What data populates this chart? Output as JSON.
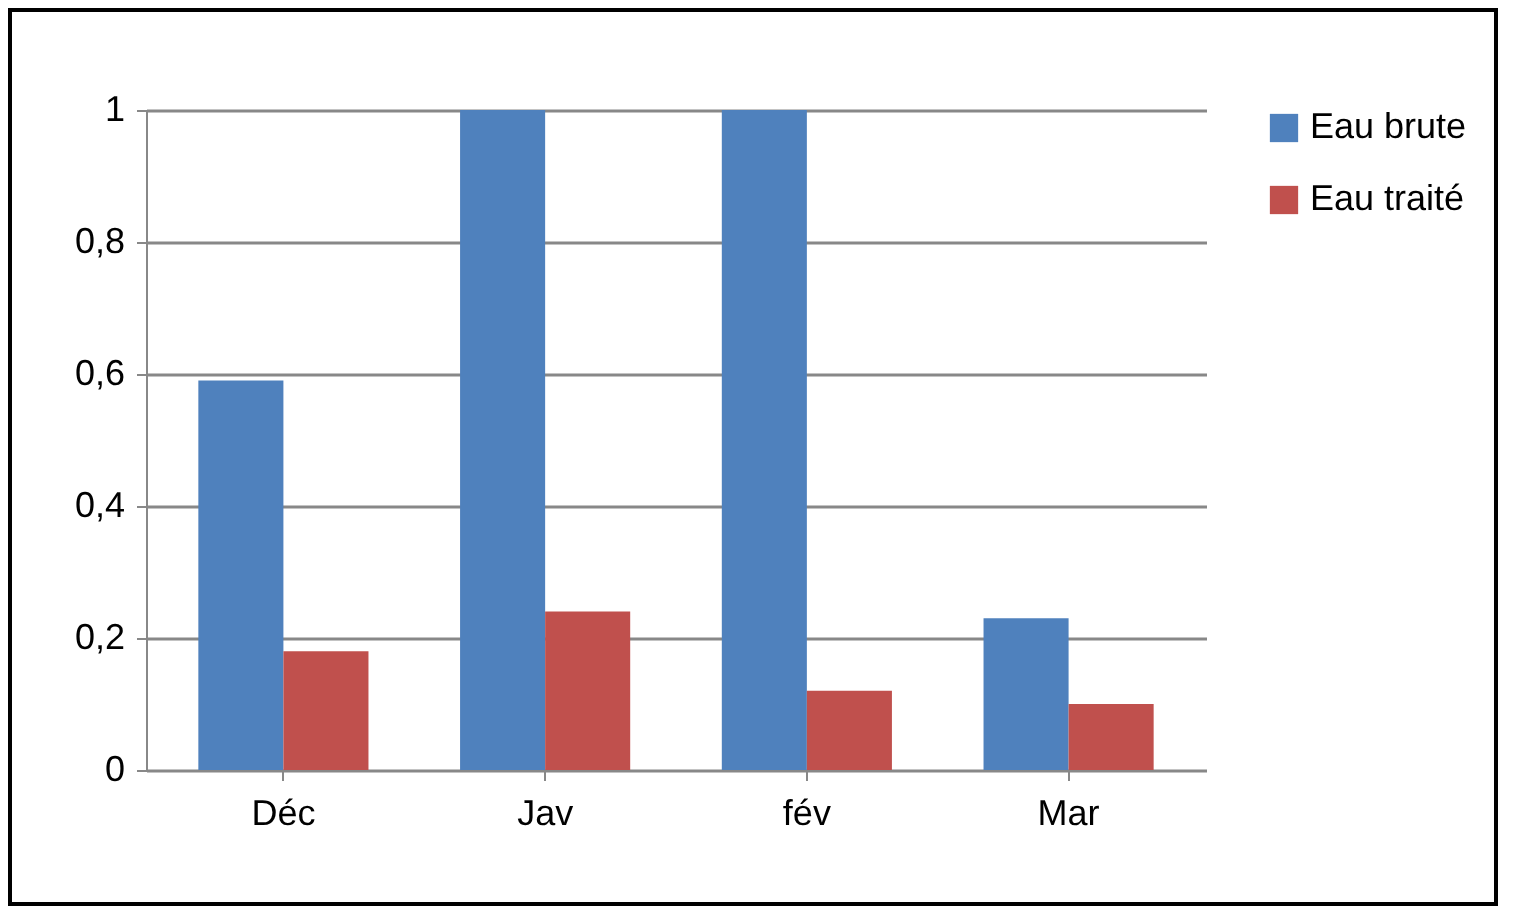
{
  "chart_data": {
    "type": "bar",
    "categories": [
      "Déc",
      "Jav",
      "fév",
      "Mar"
    ],
    "series": [
      {
        "name": "Eau brute",
        "color": "#4f81bd",
        "values": [
          0.59,
          1,
          1,
          0.23
        ]
      },
      {
        "name": "Eau traité",
        "color": "#c0504d",
        "values": [
          0.18,
          0.24,
          0.12,
          0.1
        ]
      }
    ],
    "ylim": [
      0,
      1
    ],
    "yticks": [
      0,
      {
        "value": 0.2,
        "label": "0,2"
      },
      {
        "value": 0.4,
        "label": "0,4"
      },
      {
        "value": 0.6,
        "label": "0,6"
      },
      {
        "value": 0.8,
        "label": "0,8"
      },
      1
    ],
    "grid": "y",
    "legend": "right"
  }
}
